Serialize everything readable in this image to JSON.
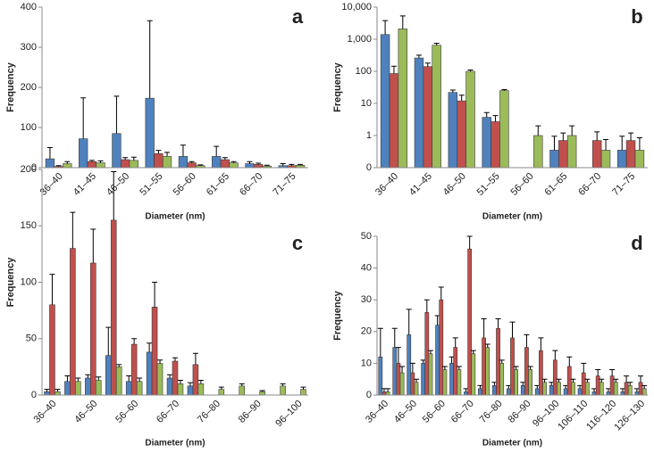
{
  "chart_data": [
    {
      "type": "bar",
      "panel_label": "a",
      "xlabel": "Diameter (nm)",
      "ylabel": "Frequency",
      "categories": [
        "36–40",
        "41–45",
        "46–50",
        "51–55",
        "56–60",
        "61–65",
        "66–70",
        "71–75"
      ],
      "ylim": [
        0,
        400
      ],
      "yticks": [
        0,
        100,
        200,
        300,
        400
      ],
      "log": false,
      "series": [
        {
          "color": "#4f81bd",
          "values": [
            22,
            72,
            85,
            173,
            28,
            28,
            10,
            5
          ],
          "errors": [
            28,
            102,
            93,
            193,
            28,
            25,
            5,
            5
          ]
        },
        {
          "color": "#c0504d",
          "values": [
            3,
            15,
            20,
            35,
            12,
            20,
            8,
            5
          ],
          "errors": [
            2,
            3,
            5,
            8,
            3,
            5,
            3,
            3
          ]
        },
        {
          "color": "#9bbb59",
          "values": [
            10,
            12,
            18,
            28,
            5,
            12,
            4,
            6
          ],
          "errors": [
            5,
            5,
            8,
            10,
            2,
            3,
            2,
            2
          ]
        }
      ]
    },
    {
      "type": "bar",
      "panel_label": "b",
      "xlabel": "Diameter (nm)",
      "ylabel": "Frequency",
      "categories": [
        "36–40",
        "41–45",
        "46–50",
        "51–55",
        "56–60",
        "61–65",
        "66–70",
        "71–75"
      ],
      "ylim": [
        0.1,
        10000
      ],
      "log": true,
      "yticks": [
        {
          "value": 0.1,
          "label": "0"
        },
        1,
        10,
        100,
        {
          "value": 1000,
          "label": "1,000"
        },
        {
          "value": 10000,
          "label": "10,000"
        }
      ],
      "series": [
        {
          "color": "#4f81bd",
          "values": [
            1400,
            260,
            22,
            3.7,
            null,
            0.35,
            null,
            0.35
          ],
          "errors": [
            2400,
            60,
            4,
            1.5,
            null,
            0.6,
            null,
            0.6
          ]
        },
        {
          "color": "#c0504d",
          "values": [
            85,
            140,
            12,
            2.7,
            null,
            0.7,
            0.7,
            0.7
          ],
          "errors": [
            60,
            40,
            6,
            1.5,
            null,
            0.5,
            0.6,
            0.5
          ]
        },
        {
          "color": "#9bbb59",
          "values": [
            2100,
            650,
            100,
            25,
            1,
            1,
            0.35,
            0.35
          ],
          "errors": [
            3200,
            100,
            10,
            2,
            1,
            1,
            0.4,
            0.5
          ]
        }
      ]
    },
    {
      "type": "bar",
      "panel_label": "c",
      "xlabel": "Diameter (nm)",
      "ylabel": "Frequency",
      "categories": [
        "36–40",
        null,
        "46–50",
        null,
        "56–60",
        null,
        "66–70",
        null,
        "76–80",
        null,
        "86–90",
        null,
        "96–100"
      ],
      "ylim": [
        0,
        200
      ],
      "yticks": [
        0,
        50,
        100,
        150,
        200
      ],
      "log": false,
      "series": [
        {
          "color": "#4f81bd",
          "values": [
            3,
            12,
            15,
            35,
            12,
            38,
            15,
            8,
            0,
            0,
            0,
            0,
            0
          ],
          "errors": [
            2,
            5,
            3,
            25,
            5,
            8,
            3,
            3,
            0,
            0,
            0,
            0,
            0
          ]
        },
        {
          "color": "#c0504d",
          "values": [
            80,
            130,
            117,
            155,
            45,
            78,
            30,
            27,
            0,
            0,
            0,
            0,
            0
          ],
          "errors": [
            27,
            32,
            30,
            43,
            5,
            22,
            3,
            10,
            0,
            0,
            0,
            0,
            0
          ]
        },
        {
          "color": "#9bbb59",
          "values": [
            3,
            12,
            13,
            25,
            12,
            28,
            10,
            10,
            5,
            8,
            3,
            8,
            5
          ],
          "errors": [
            2,
            3,
            3,
            2,
            3,
            3,
            3,
            3,
            2,
            2,
            1,
            2,
            2
          ]
        }
      ]
    },
    {
      "type": "bar",
      "panel_label": "d",
      "xlabel": "Diameter (nm)",
      "ylabel": "Frequency",
      "categories": [
        "36–40",
        null,
        "46–50",
        null,
        "56–60",
        null,
        "66–70",
        null,
        "76–80",
        null,
        "86–90",
        null,
        "96–100",
        null,
        "106–110",
        null,
        "116–120",
        null,
        "126–130"
      ],
      "ylim": [
        0,
        50
      ],
      "yticks": [
        0,
        10,
        20,
        30,
        40,
        50
      ],
      "log": false,
      "series": [
        {
          "color": "#4f81bd",
          "values": [
            12,
            15,
            19,
            10,
            22,
            10,
            1,
            2,
            3,
            2,
            3,
            2,
            3,
            2,
            2,
            1,
            1,
            1,
            1
          ],
          "errors": [
            9,
            6,
            8,
            1,
            3,
            2,
            1,
            1,
            1,
            1,
            1,
            1,
            1,
            1,
            1,
            1,
            1,
            1,
            1
          ]
        },
        {
          "color": "#c0504d",
          "values": [
            1,
            10,
            7,
            26,
            30,
            15,
            46,
            18,
            21,
            18,
            15,
            14,
            11,
            9,
            7,
            6,
            6,
            4,
            4
          ],
          "errors": [
            1,
            5,
            3,
            4,
            4,
            3,
            4,
            6,
            3,
            5,
            4,
            4,
            3,
            3,
            3,
            2,
            2,
            2,
            2
          ]
        },
        {
          "color": "#9bbb59",
          "values": [
            1,
            7,
            4,
            13,
            8,
            8,
            13,
            15,
            10,
            8,
            8,
            4,
            4,
            4,
            4,
            4,
            4,
            3,
            2
          ],
          "errors": [
            1,
            2,
            1,
            1,
            1,
            1,
            1,
            1,
            1,
            1,
            1,
            1,
            1,
            1,
            1,
            1,
            1,
            1,
            1
          ]
        }
      ]
    }
  ]
}
